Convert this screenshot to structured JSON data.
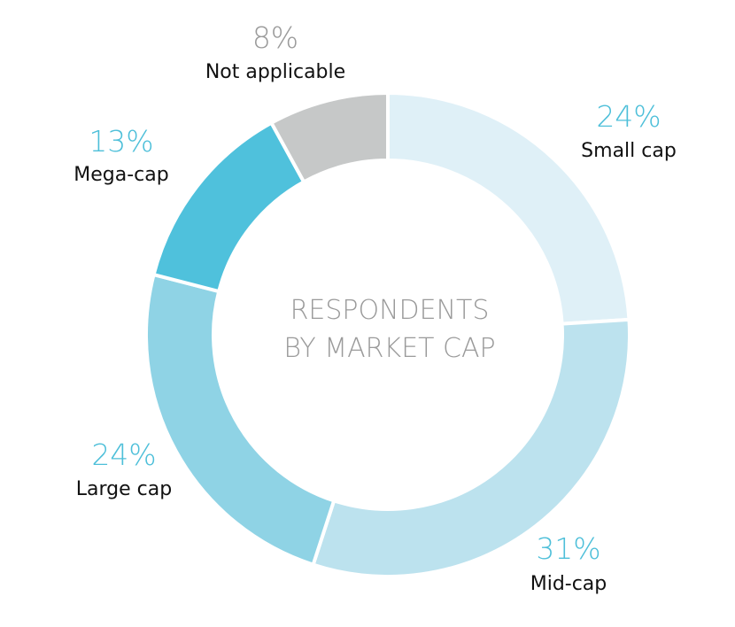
{
  "chart_data": {
    "type": "pie",
    "variant": "donut",
    "title_lines": [
      "RESPONDENTS",
      "BY MARKET CAP"
    ],
    "slices": [
      {
        "label": "Small cap",
        "value": 24,
        "value_label": "24%",
        "color": "#dff0f7",
        "label_color": "#4dbfd9"
      },
      {
        "label": "Mid-cap",
        "value": 31,
        "value_label": "31%",
        "color": "#bce2ee",
        "label_color": "#4dbfd9"
      },
      {
        "label": "Large cap",
        "value": 24,
        "value_label": "24%",
        "color": "#8fd3e5",
        "label_color": "#4dbfd9"
      },
      {
        "label": "Mega-cap",
        "value": 13,
        "value_label": "13%",
        "color": "#4fc1dc",
        "label_color": "#4dbfd9"
      },
      {
        "label": "Not applicable",
        "value": 8,
        "value_label": "8%",
        "color": "#c6c8c8",
        "label_color": "#9a9a9a"
      }
    ]
  }
}
